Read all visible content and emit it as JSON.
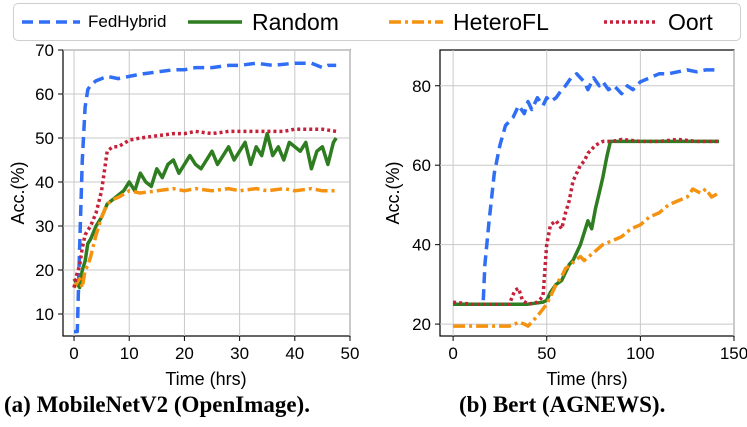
{
  "legend": {
    "items": [
      {
        "label": "FedHybrid",
        "color": "#2f6ef5",
        "dash": "dash"
      },
      {
        "label": "Random",
        "color": "#2e7d20",
        "dash": "solid"
      },
      {
        "label": "HeteroFL",
        "color": "#f5920f",
        "dash": "dashdot"
      },
      {
        "label": "Oort",
        "color": "#c6213b",
        "dash": "dot"
      }
    ]
  },
  "captions": {
    "a": "(a)  MobileNetV2 (OpenImage).",
    "b": "(b)  Bert (AGNEWS)."
  },
  "chart_data": [
    {
      "type": "line",
      "title": "MobileNetV2 (OpenImage)",
      "xlabel": "Time (hrs)",
      "ylabel": "Acc.(%)",
      "xlim": [
        -2,
        50
      ],
      "ylim": [
        5,
        70
      ],
      "xticks": [
        0,
        10,
        20,
        30,
        40,
        50
      ],
      "yticks": [
        10,
        20,
        30,
        40,
        50,
        60,
        70
      ],
      "grid": true,
      "series": [
        {
          "name": "FedHybrid",
          "x": [
            0,
            0.6,
            1,
            1.5,
            2,
            2.5,
            3,
            4,
            5,
            6,
            8,
            10,
            12,
            15,
            18,
            20,
            22,
            25,
            28,
            30,
            33,
            36,
            40,
            43,
            45,
            46,
            47.5
          ],
          "y": [
            6,
            6,
            25,
            45,
            57,
            61,
            62,
            63,
            63.5,
            64,
            63.5,
            64,
            64.5,
            65,
            65.5,
            65.5,
            66,
            66,
            66.5,
            66.5,
            67,
            66.5,
            67,
            67,
            66,
            66.5,
            66.5
          ]
        },
        {
          "name": "Random",
          "x": [
            0,
            1,
            1.5,
            2,
            2.5,
            3,
            4,
            5,
            6,
            7,
            8,
            9,
            10,
            11,
            12,
            13,
            14,
            15,
            16,
            17,
            18,
            19,
            20,
            21,
            22,
            23,
            24,
            25,
            26,
            27,
            28,
            29,
            30,
            31,
            32,
            33,
            34,
            35,
            36,
            37,
            38,
            39,
            40,
            41,
            42,
            43,
            44,
            45,
            46,
            47,
            47.5
          ],
          "y": [
            18,
            16,
            20,
            22,
            26,
            27,
            30,
            32,
            35,
            36,
            37,
            38,
            40,
            38,
            42,
            40,
            39,
            43,
            41,
            44,
            45,
            42,
            44,
            46,
            44,
            43,
            45,
            47,
            44,
            46,
            48,
            45,
            47,
            49,
            44,
            48,
            46,
            51,
            46,
            48,
            45,
            49,
            48,
            47,
            49,
            43,
            47,
            48,
            44,
            49,
            50
          ]
        },
        {
          "name": "HeteroFL",
          "x": [
            0,
            0.5,
            1,
            1.5,
            2,
            2.5,
            3,
            4,
            5,
            6,
            7,
            8,
            10,
            12,
            15,
            18,
            20,
            22,
            25,
            28,
            30,
            33,
            35,
            38,
            40,
            43,
            45,
            47.5
          ],
          "y": [
            16,
            17,
            18,
            16,
            20,
            21,
            23,
            28,
            32,
            35,
            36,
            36.5,
            38,
            37.5,
            38,
            38.5,
            38,
            38.5,
            38,
            38.5,
            38,
            38.5,
            38,
            38.5,
            38,
            38.5,
            38,
            38
          ]
        },
        {
          "name": "Oort",
          "x": [
            0,
            0.5,
            1,
            1.5,
            2,
            3,
            4,
            5,
            6,
            7,
            8,
            10,
            12,
            15,
            18,
            20,
            22,
            25,
            28,
            30,
            33,
            35,
            38,
            40,
            43,
            45,
            47.5
          ],
          "y": [
            16,
            19,
            21,
            25,
            28,
            30,
            33,
            38,
            47,
            48,
            48,
            49.5,
            50,
            50.5,
            51,
            51,
            51.5,
            51,
            51.5,
            51.5,
            51.5,
            51.5,
            51.5,
            52,
            52,
            52,
            51.5
          ]
        }
      ]
    },
    {
      "type": "line",
      "title": "Bert (AGNEWS)",
      "xlabel": "Time (hrs)",
      "ylabel": "Acc.(%)",
      "xlim": [
        -7,
        150
      ],
      "ylim": [
        17,
        89
      ],
      "xticks": [
        0,
        50,
        100,
        150
      ],
      "yticks": [
        20,
        40,
        60,
        80
      ],
      "grid": true,
      "series": [
        {
          "name": "FedHybrid",
          "x": [
            0,
            10,
            16,
            17,
            19,
            22,
            25,
            28,
            32,
            35,
            38,
            40,
            42,
            45,
            48,
            50,
            52,
            55,
            58,
            60,
            63,
            66,
            68,
            70,
            72,
            75,
            78,
            80,
            83,
            86,
            90,
            93,
            96,
            100,
            105,
            110,
            115,
            120,
            125,
            130,
            135,
            142
          ],
          "y": [
            25,
            25,
            25,
            35,
            45,
            58,
            65,
            70,
            72,
            75,
            73,
            76,
            74,
            77,
            75,
            77,
            76,
            77,
            79,
            80,
            82,
            83,
            82,
            81,
            79,
            82,
            80,
            81,
            79,
            80,
            78,
            80,
            79,
            81,
            82,
            83,
            83,
            83.5,
            84,
            83.5,
            84,
            84
          ]
        },
        {
          "name": "Random",
          "x": [
            0,
            10,
            20,
            30,
            40,
            48,
            50,
            52,
            55,
            58,
            60,
            62,
            64,
            66,
            68,
            70,
            72,
            74,
            76,
            78,
            80,
            82,
            84,
            86,
            90,
            100,
            110,
            120,
            130,
            142
          ],
          "y": [
            25,
            25,
            25,
            25,
            25,
            25.5,
            26,
            28,
            30,
            31,
            33,
            35,
            36,
            38,
            40,
            43,
            46,
            44,
            49,
            53,
            57,
            62,
            66,
            66,
            66,
            66,
            66,
            66,
            66,
            66
          ]
        },
        {
          "name": "HeteroFL",
          "x": [
            0,
            10,
            20,
            28,
            30,
            33,
            35,
            38,
            40,
            45,
            50,
            52,
            55,
            58,
            60,
            63,
            65,
            68,
            70,
            75,
            80,
            85,
            90,
            95,
            100,
            105,
            110,
            115,
            120,
            125,
            128,
            132,
            135,
            138,
            142
          ],
          "y": [
            19.5,
            19.5,
            19.5,
            19.5,
            19.5,
            20,
            20.5,
            20,
            19.5,
            22,
            25,
            27,
            30,
            32,
            34,
            35,
            36,
            37,
            36,
            38,
            40,
            41,
            42,
            44,
            45,
            47,
            48,
            50,
            51,
            52,
            54,
            53,
            54,
            52,
            53
          ]
        },
        {
          "name": "Oort",
          "x": [
            0,
            10,
            20,
            30,
            33,
            35,
            37,
            40,
            45,
            48,
            50,
            52,
            55,
            58,
            60,
            62,
            64,
            66,
            68,
            70,
            72,
            74,
            76,
            78,
            80,
            85,
            90,
            100,
            110,
            120,
            130,
            142
          ],
          "y": [
            25.5,
            25,
            25,
            25,
            28.5,
            29,
            26,
            25,
            25.5,
            27,
            40,
            45,
            46,
            44,
            48,
            51,
            56,
            58,
            60,
            61,
            63,
            64,
            65,
            65.5,
            66,
            66,
            66.5,
            66,
            66,
            66.5,
            66,
            66
          ]
        }
      ]
    }
  ]
}
